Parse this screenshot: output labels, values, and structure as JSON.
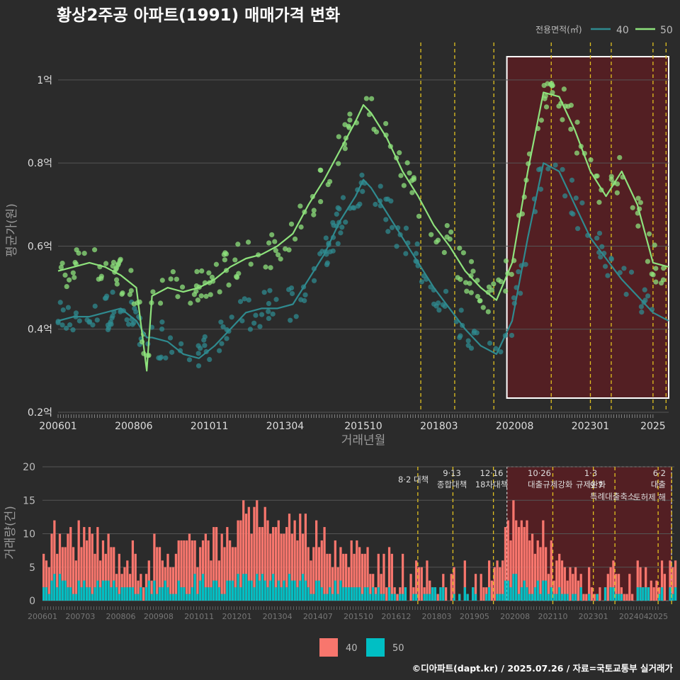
{
  "title": "황상2주공 아파트(1991) 매매가격 변화",
  "footer": "©디아파트(dapt.kr) / 2025.07.26 / 자료=국토교통부 실거래가",
  "colors": {
    "background": "#2b2b2b",
    "grid": "#555555",
    "series_40_price": "#2f8a8f",
    "series_50_price": "#8ee27c",
    "series_40_volume": "#f8766d",
    "series_50_volume": "#00bfc4",
    "policy_line": "#e0c020",
    "highlight_fill": "#5a1d22",
    "text_light": "#dddddd",
    "text_dim": "#999999"
  },
  "chart_data": [
    {
      "type": "line",
      "title": "황상2주공 아파트(1991) 매매가격 변화",
      "xlabel": "거래년월",
      "ylabel": "평균가(원)",
      "xlim": [
        "2006-01",
        "2025-07"
      ],
      "ylim": [
        0.2,
        1.08
      ],
      "x_ticks": [
        "200601",
        "200806",
        "201011",
        "201304",
        "201510",
        "201803",
        "202008",
        "202301",
        "2025"
      ],
      "y_ticks": [
        "0.2억",
        "0.4억",
        "0.6억",
        "0.8억",
        "1억"
      ],
      "y_tick_values": [
        0.2,
        0.4,
        0.6,
        0.8,
        1.0
      ],
      "legend": {
        "title": "전용면적(㎡)",
        "placement": "top-right",
        "entries": [
          "40",
          "50"
        ]
      },
      "highlight": {
        "from": "2020-05",
        "to": "2025-07"
      },
      "policy_dates": [
        "2017-08",
        "2018-09",
        "2019-12",
        "2021-10",
        "2023-01",
        "2023-09",
        "2025-01",
        "2025-06"
      ],
      "series": [
        {
          "name": "40",
          "x": [
            "2006-01",
            "2006-07",
            "2007-01",
            "2007-07",
            "2008-01",
            "2008-07",
            "2008-11",
            "2009-01",
            "2009-07",
            "2010-01",
            "2010-07",
            "2011-01",
            "2011-07",
            "2012-01",
            "2012-07",
            "2013-01",
            "2013-07",
            "2014-01",
            "2014-07",
            "2015-01",
            "2015-07",
            "2015-10",
            "2016-01",
            "2016-07",
            "2017-01",
            "2017-07",
            "2018-01",
            "2018-07",
            "2019-01",
            "2019-07",
            "2020-01",
            "2020-07",
            "2021-01",
            "2021-07",
            "2022-01",
            "2022-07",
            "2023-01",
            "2023-07",
            "2024-01",
            "2024-07",
            "2025-01",
            "2025-07"
          ],
          "y": [
            0.42,
            0.43,
            0.43,
            0.44,
            0.45,
            0.42,
            0.38,
            0.38,
            0.37,
            0.34,
            0.33,
            0.36,
            0.4,
            0.44,
            0.45,
            0.45,
            0.46,
            0.52,
            0.58,
            0.66,
            0.72,
            0.76,
            0.74,
            0.68,
            0.62,
            0.56,
            0.5,
            0.45,
            0.4,
            0.36,
            0.34,
            0.42,
            0.62,
            0.8,
            0.78,
            0.7,
            0.62,
            0.57,
            0.52,
            0.48,
            0.44,
            0.42
          ]
        },
        {
          "name": "50",
          "x": [
            "2006-01",
            "2006-07",
            "2007-01",
            "2007-07",
            "2008-01",
            "2008-07",
            "2008-11",
            "2009-01",
            "2009-07",
            "2010-01",
            "2010-07",
            "2011-01",
            "2011-07",
            "2012-01",
            "2012-07",
            "2013-01",
            "2013-07",
            "2014-01",
            "2014-07",
            "2015-01",
            "2015-07",
            "2015-10",
            "2016-01",
            "2016-07",
            "2017-01",
            "2017-07",
            "2018-01",
            "2018-07",
            "2019-01",
            "2019-07",
            "2020-01",
            "2020-07",
            "2021-01",
            "2021-07",
            "2022-01",
            "2022-07",
            "2023-01",
            "2023-07",
            "2024-01",
            "2024-07",
            "2025-01",
            "2025-07"
          ],
          "y": [
            0.54,
            0.55,
            0.56,
            0.55,
            0.53,
            0.5,
            0.3,
            0.48,
            0.5,
            0.49,
            0.5,
            0.52,
            0.55,
            0.57,
            0.58,
            0.6,
            0.63,
            0.7,
            0.76,
            0.83,
            0.9,
            0.94,
            0.92,
            0.86,
            0.78,
            0.72,
            0.65,
            0.6,
            0.54,
            0.5,
            0.47,
            0.56,
            0.78,
            0.97,
            0.96,
            0.88,
            0.78,
            0.72,
            0.78,
            0.7,
            0.56,
            0.55
          ]
        }
      ]
    },
    {
      "type": "bar",
      "xlabel": "",
      "ylabel": "거래량(건)",
      "ylim": [
        0,
        20
      ],
      "y_ticks": [
        "0",
        "5",
        "10",
        "15",
        "20"
      ],
      "x_ticks": [
        "200601",
        "200703",
        "200806",
        "200908",
        "201011",
        "201201",
        "201304",
        "201407",
        "201510",
        "201612",
        "201803",
        "201905",
        "202008",
        "202110",
        "202301",
        "202404",
        "2025"
      ],
      "legend": {
        "placement": "bottom",
        "entries": [
          "40",
          "50"
        ]
      },
      "highlight": {
        "from": "2020-05",
        "to": "2025-07"
      },
      "policy_annotations": [
        {
          "date": "2017-08",
          "label": "8·2 대책"
        },
        {
          "date": "2018-09",
          "label": "9·13\n종합대책"
        },
        {
          "date": "2019-12",
          "label": "12·16\n18차대책"
        },
        {
          "date": "2021-10",
          "label": "10·26\n대출규제강화"
        },
        {
          "date": "2023-01",
          "label": "1·3\n규제완화"
        },
        {
          "date": "2023-09",
          "label": "9·7\n특례대출축소"
        },
        {
          "date": "2025-01",
          "label": "토허제 해"
        },
        {
          "date": "2025-06",
          "label": "6·2\n대출"
        }
      ],
      "series": [
        {
          "name": "40",
          "x": [
            "2006-01",
            "2006-07",
            "2007-01",
            "2007-07",
            "2008-01",
            "2008-07",
            "2009-01",
            "2009-07",
            "2010-01",
            "2010-07",
            "2011-01",
            "2011-07",
            "2012-01",
            "2012-07",
            "2013-01",
            "2013-07",
            "2014-01",
            "2014-07",
            "2015-01",
            "2015-07",
            "2016-01",
            "2016-07",
            "2017-01",
            "2017-07",
            "2018-01",
            "2018-07",
            "2019-01",
            "2019-07",
            "2020-01",
            "2020-07",
            "2021-01",
            "2021-07",
            "2022-01",
            "2022-07",
            "2023-01",
            "2023-07",
            "2024-01",
            "2024-07",
            "2025-01",
            "2025-07"
          ],
          "y": [
            5,
            6,
            7,
            6,
            5,
            4,
            4,
            4,
            5,
            6,
            7,
            6,
            8,
            9,
            9,
            8,
            8,
            7,
            6,
            5,
            4,
            3,
            3,
            2,
            2,
            1,
            1,
            1,
            2,
            10,
            8,
            6,
            3,
            2,
            1,
            1,
            1,
            1,
            1,
            1
          ]
        },
        {
          "name": "50",
          "x": [
            "2006-01",
            "2006-07",
            "2007-01",
            "2007-07",
            "2008-01",
            "2008-07",
            "2009-01",
            "2009-07",
            "2010-01",
            "2010-07",
            "2011-01",
            "2011-07",
            "2012-01",
            "2012-07",
            "2013-01",
            "2013-07",
            "2014-01",
            "2014-07",
            "2015-01",
            "2015-07",
            "2016-01",
            "2016-07",
            "2017-01",
            "2017-07",
            "2018-01",
            "2018-07",
            "2019-01",
            "2019-07",
            "2020-01",
            "2020-07",
            "2021-01",
            "2021-07",
            "2022-01",
            "2022-07",
            "2023-01",
            "2023-07",
            "2024-01",
            "2024-07",
            "2025-01",
            "2025-07"
          ],
          "y": [
            2,
            3,
            2,
            2,
            2,
            1,
            2,
            1,
            2,
            2,
            3,
            2,
            3,
            3,
            3,
            3,
            3,
            2,
            2,
            2,
            1,
            1,
            1,
            1,
            1,
            0,
            1,
            0,
            1,
            3,
            2,
            2,
            1,
            1,
            0,
            1,
            0,
            1,
            0,
            1
          ]
        }
      ]
    }
  ]
}
